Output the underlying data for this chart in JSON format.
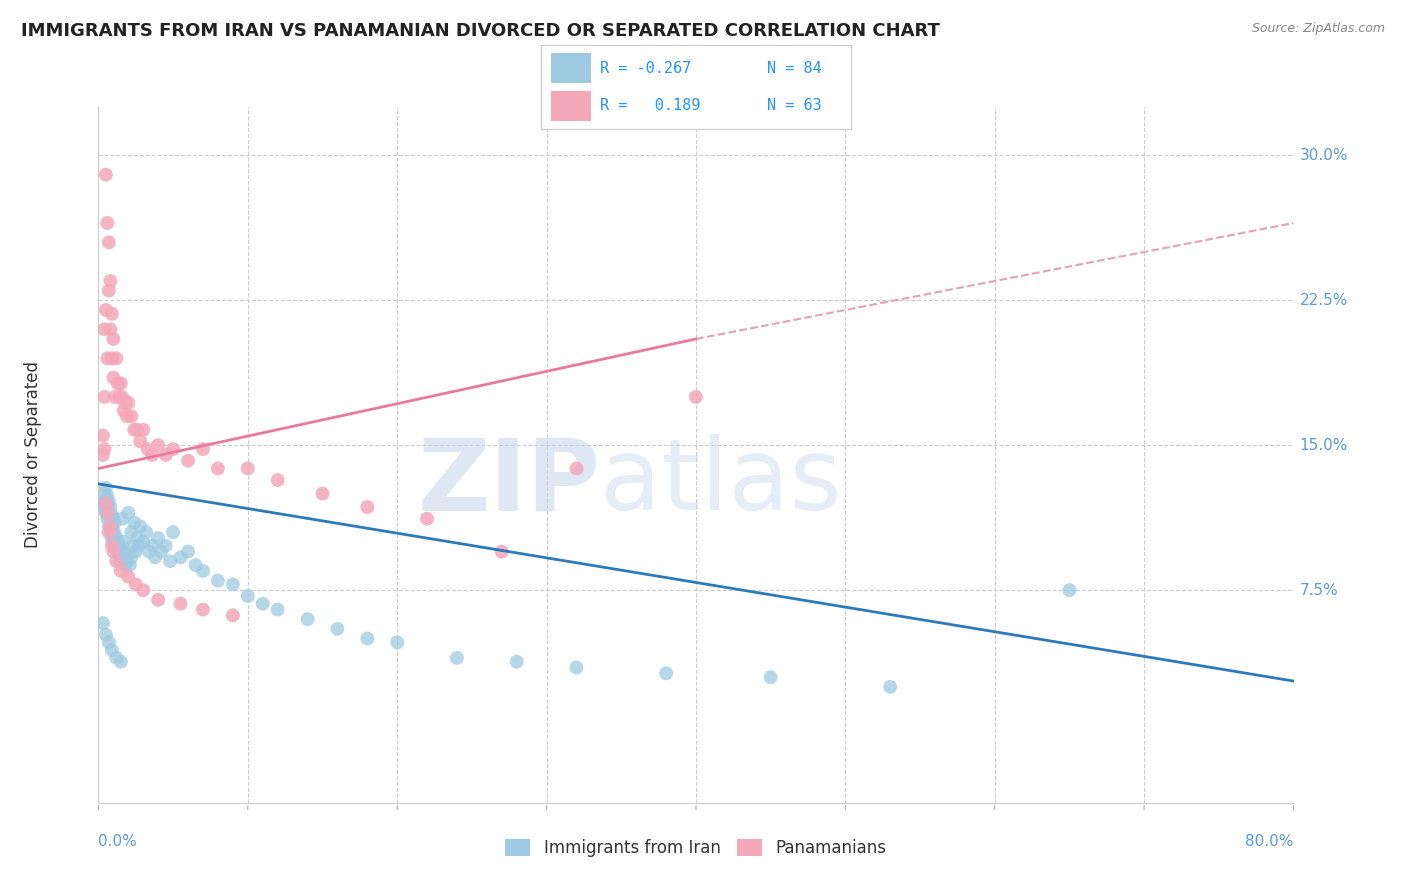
{
  "title": "IMMIGRANTS FROM IRAN VS PANAMANIAN DIVORCED OR SEPARATED CORRELATION CHART",
  "source": "Source: ZipAtlas.com",
  "ylabel": "Divorced or Separated",
  "yticks": [
    "7.5%",
    "15.0%",
    "22.5%",
    "30.0%"
  ],
  "ytick_vals": [
    0.075,
    0.15,
    0.225,
    0.3
  ],
  "xtick_vals": [
    0.0,
    0.1,
    0.2,
    0.3,
    0.4,
    0.5,
    0.6,
    0.7,
    0.8
  ],
  "xlim": [
    0,
    0.8
  ],
  "ylim": [
    -0.035,
    0.325
  ],
  "blue_line_x": [
    0.0,
    0.8
  ],
  "blue_line_y": [
    0.13,
    0.028
  ],
  "pink_line_x": [
    0.0,
    0.4
  ],
  "pink_line_y": [
    0.138,
    0.205
  ],
  "dashed_line_x": [
    0.4,
    0.8
  ],
  "dashed_line_y": [
    0.205,
    0.265
  ],
  "blue_scatter_x": [
    0.003,
    0.004,
    0.004,
    0.005,
    0.005,
    0.005,
    0.006,
    0.006,
    0.006,
    0.007,
    0.007,
    0.007,
    0.008,
    0.008,
    0.008,
    0.009,
    0.009,
    0.009,
    0.01,
    0.01,
    0.01,
    0.011,
    0.011,
    0.011,
    0.012,
    0.012,
    0.013,
    0.013,
    0.014,
    0.014,
    0.015,
    0.015,
    0.016,
    0.016,
    0.017,
    0.018,
    0.018,
    0.019,
    0.02,
    0.021,
    0.022,
    0.022,
    0.023,
    0.024,
    0.025,
    0.026,
    0.027,
    0.028,
    0.03,
    0.032,
    0.034,
    0.036,
    0.038,
    0.04,
    0.042,
    0.045,
    0.048,
    0.05,
    0.055,
    0.06,
    0.065,
    0.07,
    0.08,
    0.09,
    0.1,
    0.11,
    0.12,
    0.14,
    0.16,
    0.18,
    0.2,
    0.24,
    0.28,
    0.32,
    0.38,
    0.45,
    0.53,
    0.003,
    0.005,
    0.007,
    0.009,
    0.012,
    0.015,
    0.65
  ],
  "blue_scatter_y": [
    0.12,
    0.118,
    0.125,
    0.115,
    0.122,
    0.128,
    0.112,
    0.118,
    0.124,
    0.108,
    0.115,
    0.121,
    0.105,
    0.112,
    0.118,
    0.102,
    0.108,
    0.114,
    0.1,
    0.106,
    0.112,
    0.098,
    0.104,
    0.11,
    0.096,
    0.102,
    0.094,
    0.1,
    0.092,
    0.098,
    0.09,
    0.096,
    0.112,
    0.094,
    0.1,
    0.088,
    0.094,
    0.09,
    0.115,
    0.088,
    0.105,
    0.092,
    0.098,
    0.11,
    0.095,
    0.102,
    0.098,
    0.108,
    0.1,
    0.105,
    0.095,
    0.098,
    0.092,
    0.102,
    0.095,
    0.098,
    0.09,
    0.105,
    0.092,
    0.095,
    0.088,
    0.085,
    0.08,
    0.078,
    0.072,
    0.068,
    0.065,
    0.06,
    0.055,
    0.05,
    0.048,
    0.04,
    0.038,
    0.035,
    0.032,
    0.03,
    0.025,
    0.058,
    0.052,
    0.048,
    0.044,
    0.04,
    0.038,
    0.075
  ],
  "pink_scatter_x": [
    0.003,
    0.004,
    0.004,
    0.005,
    0.005,
    0.006,
    0.006,
    0.007,
    0.007,
    0.008,
    0.008,
    0.009,
    0.009,
    0.01,
    0.01,
    0.011,
    0.012,
    0.013,
    0.014,
    0.015,
    0.016,
    0.017,
    0.018,
    0.019,
    0.02,
    0.022,
    0.024,
    0.026,
    0.028,
    0.03,
    0.033,
    0.036,
    0.04,
    0.045,
    0.05,
    0.06,
    0.07,
    0.08,
    0.1,
    0.12,
    0.15,
    0.18,
    0.22,
    0.27,
    0.32,
    0.003,
    0.004,
    0.005,
    0.006,
    0.007,
    0.008,
    0.009,
    0.01,
    0.012,
    0.015,
    0.02,
    0.025,
    0.03,
    0.04,
    0.055,
    0.07,
    0.09,
    0.4
  ],
  "pink_scatter_y": [
    0.155,
    0.175,
    0.21,
    0.29,
    0.22,
    0.265,
    0.195,
    0.255,
    0.23,
    0.21,
    0.235,
    0.195,
    0.218,
    0.185,
    0.205,
    0.175,
    0.195,
    0.182,
    0.175,
    0.182,
    0.175,
    0.168,
    0.172,
    0.165,
    0.172,
    0.165,
    0.158,
    0.158,
    0.152,
    0.158,
    0.148,
    0.145,
    0.15,
    0.145,
    0.148,
    0.142,
    0.148,
    0.138,
    0.138,
    0.132,
    0.125,
    0.118,
    0.112,
    0.095,
    0.138,
    0.145,
    0.148,
    0.12,
    0.115,
    0.105,
    0.108,
    0.098,
    0.095,
    0.09,
    0.085,
    0.082,
    0.078,
    0.075,
    0.07,
    0.068,
    0.065,
    0.062,
    0.175
  ]
}
